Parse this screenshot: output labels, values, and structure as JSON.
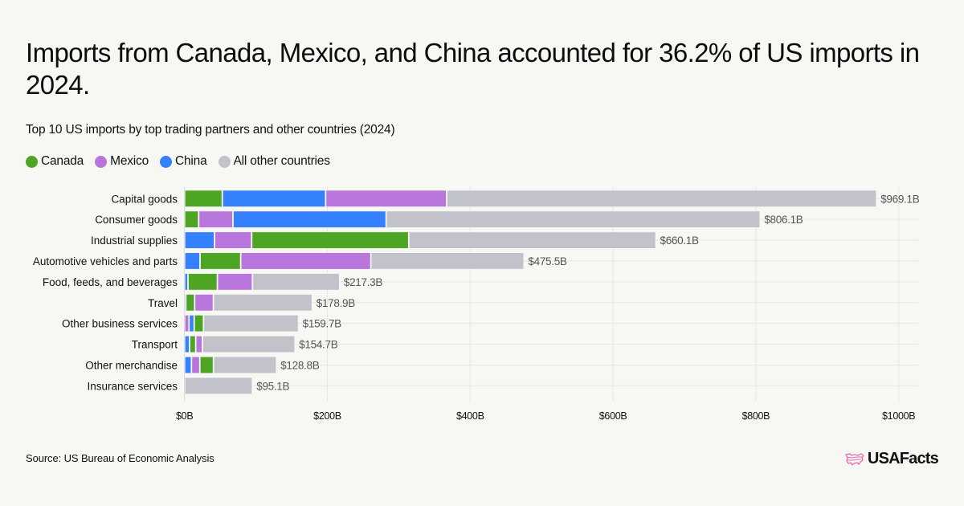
{
  "header": {
    "title": "Imports from Canada, Mexico, and China accounted for 36.2% of US imports in 2024.",
    "subtitle": "Top 10 US imports by top trading partners and other countries (2024)"
  },
  "legend": [
    {
      "name": "Canada",
      "color": "#4ea524"
    },
    {
      "name": "Mexico",
      "color": "#b875dc"
    },
    {
      "name": "China",
      "color": "#3580fd"
    },
    {
      "name": "All other countries",
      "color": "#c2c2cb"
    }
  ],
  "chart_data": {
    "type": "bar",
    "orientation": "horizontal",
    "stacked": true,
    "title": "Top 10 US imports by top trading partners and other countries (2024)",
    "xlabel": "",
    "ylabel": "",
    "xlim": [
      0,
      1000
    ],
    "unit": "billions USD",
    "grid": true,
    "legend_position": "top-left",
    "segment_order_note": "Within each bar, segments are drawn smallest to largest from the left, with All other countries last.",
    "x_ticks": [
      "$0B",
      "$200B",
      "$400B",
      "$600B",
      "$800B",
      "$1000B"
    ],
    "x_tick_values": [
      0,
      200,
      400,
      600,
      800,
      1000
    ],
    "categories": [
      "Capital goods",
      "Consumer goods",
      "Industrial supplies",
      "Automotive vehicles and parts",
      "Food, feeds, and beverages",
      "Travel",
      "Other business services",
      "Transport",
      "Other merchandise",
      "Insurance services"
    ],
    "series": [
      {
        "name": "Canada",
        "color": "#4ea524",
        "values": [
          52.9,
          19.8,
          220.0,
          57.0,
          41.2,
          12.4,
          13.1,
          8.6,
          19.1,
          0
        ]
      },
      {
        "name": "Mexico",
        "color": "#b875dc",
        "values": [
          169.5,
          48.0,
          52.0,
          182.2,
          49.1,
          26.2,
          6.3,
          9.4,
          11.7,
          0
        ]
      },
      {
        "name": "China",
        "color": "#3580fd",
        "values": [
          144.7,
          214.5,
          42.0,
          21.7,
          4.8,
          1.8,
          7.2,
          7.1,
          9.7,
          0
        ]
      },
      {
        "name": "All other countries",
        "color": "#c2c2cb",
        "values": [
          602.0,
          523.8,
          346.1,
          214.6,
          122.2,
          138.5,
          133.1,
          129.6,
          88.3,
          95.1
        ]
      }
    ],
    "totals": [
      969.1,
      806.1,
      660.1,
      475.5,
      217.3,
      178.9,
      159.7,
      154.7,
      128.8,
      95.1
    ],
    "total_labels": [
      "$969.1B",
      "$806.1B",
      "$660.1B",
      "$475.5B",
      "$217.3B",
      "$178.9B",
      "$159.7B",
      "$154.7B",
      "$128.8B",
      "$95.1B"
    ]
  },
  "footer": {
    "source": "Source: US Bureau of Economic Analysis",
    "logo_text": "USAFacts"
  }
}
